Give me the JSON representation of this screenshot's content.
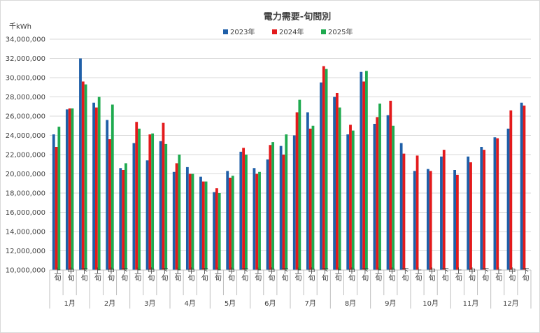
{
  "chart_data": {
    "type": "bar",
    "title": "電力需要-旬間別",
    "unit_label": "千kWh",
    "ylim": [
      10000000,
      34000000
    ],
    "ytick_step": 2000000,
    "ytick_labels": [
      "10,000,000",
      "12,000,000",
      "14,000,000",
      "16,000,000",
      "18,000,000",
      "20,000,000",
      "22,000,000",
      "24,000,000",
      "26,000,000",
      "28,000,000",
      "30,000,000",
      "32,000,000",
      "34,000,000"
    ],
    "grid": true,
    "legend_position": "top",
    "months": [
      "1月",
      "2月",
      "3月",
      "4月",
      "5月",
      "6月",
      "7月",
      "8月",
      "9月",
      "10月",
      "11月",
      "12月"
    ],
    "sub_labels": [
      "上旬",
      "中旬",
      "下旬"
    ],
    "series": [
      {
        "name": "2023年",
        "color": "#1f5fa8",
        "values": [
          24100000,
          26700000,
          32000000,
          27400000,
          25600000,
          20600000,
          23200000,
          21400000,
          23400000,
          20200000,
          20700000,
          19700000,
          18100000,
          20300000,
          22300000,
          20600000,
          21500000,
          22900000,
          24000000,
          26400000,
          29500000,
          28000000,
          24100000,
          30600000,
          25200000,
          26100000,
          23200000,
          20300000,
          20500000,
          21800000,
          20400000,
          21800000,
          22800000,
          23800000,
          24700000,
          27400000
        ]
      },
      {
        "name": "2024年",
        "color": "#e31a1c",
        "values": [
          22800000,
          26800000,
          29600000,
          26900000,
          23600000,
          20400000,
          25400000,
          24100000,
          25300000,
          21100000,
          20000000,
          19200000,
          18500000,
          19600000,
          22700000,
          20000000,
          23000000,
          22000000,
          26400000,
          24700000,
          31200000,
          28400000,
          25100000,
          29600000,
          25900000,
          27600000,
          22100000,
          21900000,
          20300000,
          22500000,
          19900000,
          21200000,
          22500000,
          23700000,
          26600000,
          27100000
        ]
      },
      {
        "name": "2025年",
        "color": "#1faa4f",
        "values": [
          24900000,
          26800000,
          29300000,
          28000000,
          27200000,
          21100000,
          24700000,
          24200000,
          23100000,
          22000000,
          20000000,
          19200000,
          18000000,
          19800000,
          22000000,
          20200000,
          23300000,
          24100000,
          27700000,
          25000000,
          30900000,
          26900000,
          24500000,
          30700000,
          27300000,
          25000000,
          null,
          null,
          null,
          null,
          null,
          null,
          null,
          null,
          null,
          null
        ]
      }
    ]
  }
}
